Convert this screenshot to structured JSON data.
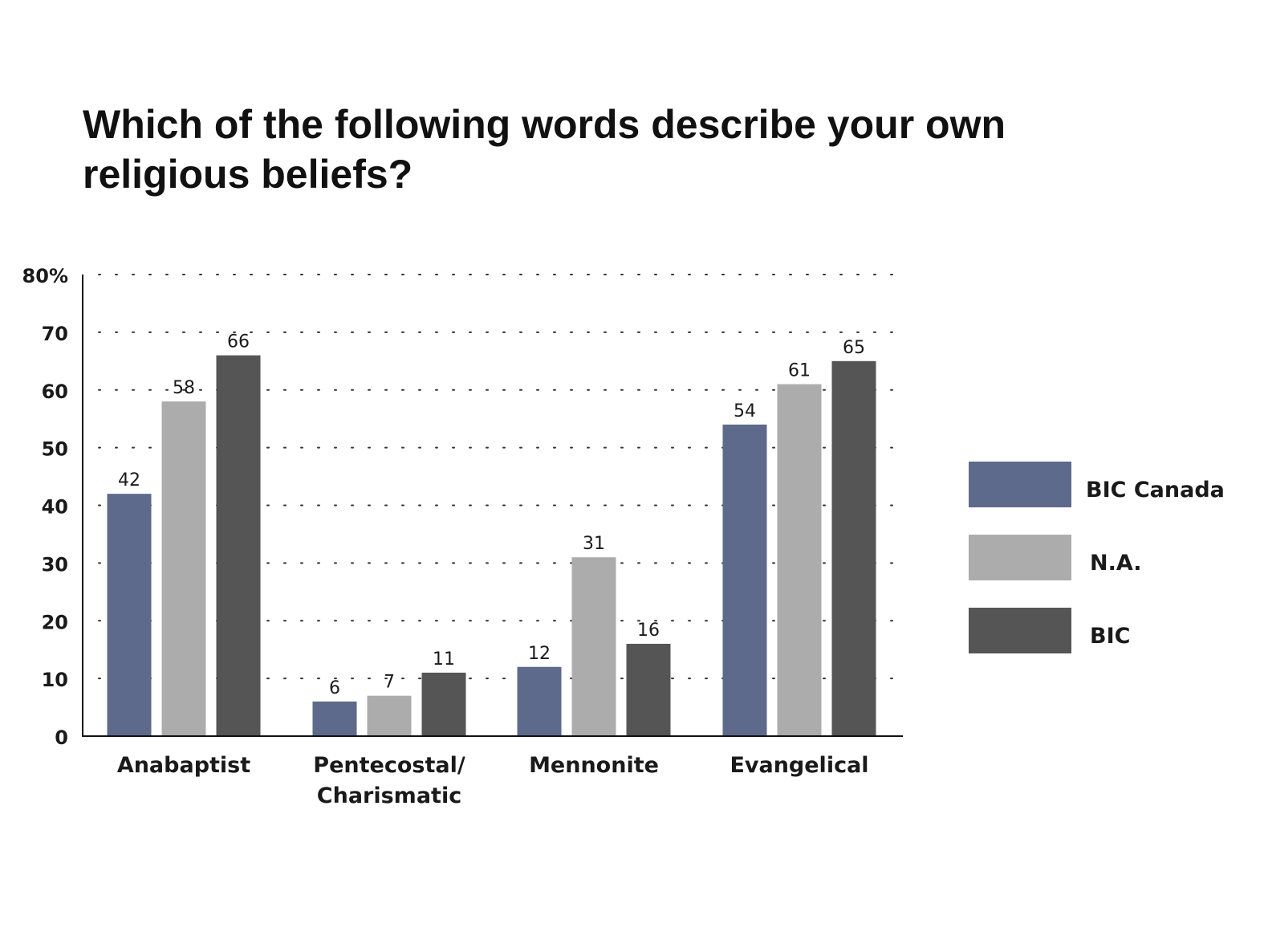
{
  "chart_data": {
    "type": "bar",
    "title": "Which of the following words describe your own religious beliefs?",
    "categories": [
      [
        "Anabaptist"
      ],
      [
        "Pentecostal/",
        "Charismatic"
      ],
      [
        "Mennonite"
      ],
      [
        "Evangelical"
      ]
    ],
    "series": [
      {
        "name": "BIC Canada",
        "color": "#5e6a8c",
        "values": [
          42,
          6,
          12,
          54
        ]
      },
      {
        "name": "N.A.",
        "color": "#acacac",
        "values": [
          58,
          7,
          31,
          61
        ]
      },
      {
        "name": "BIC",
        "color": "#555555",
        "values": [
          66,
          11,
          16,
          65
        ]
      }
    ],
    "y_ticks": [
      "0",
      "10",
      "20",
      "30",
      "40",
      "50",
      "60",
      "70",
      "80%"
    ],
    "ylim": [
      0,
      80
    ],
    "grid": "dotted horizontal",
    "legend_position": "right",
    "xlabel": "",
    "ylabel": ""
  }
}
